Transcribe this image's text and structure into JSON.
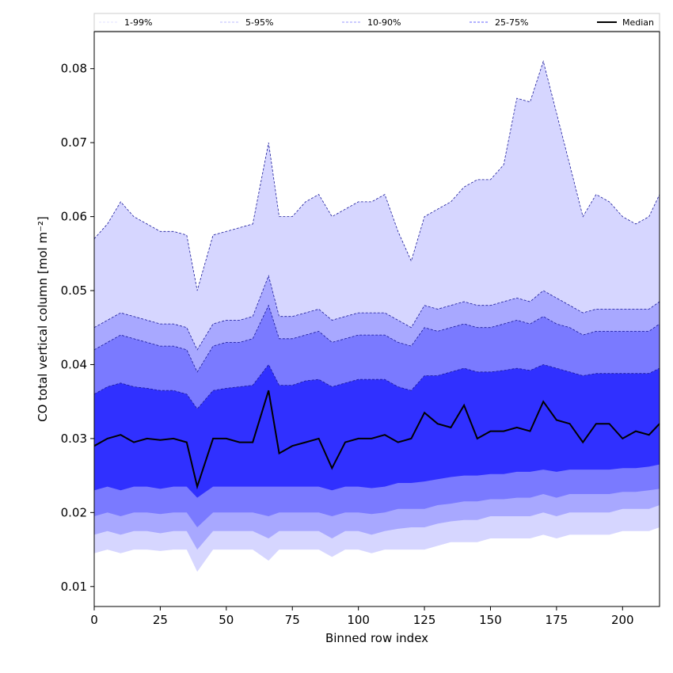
{
  "chart_data": {
    "type": "area",
    "xlabel": "Binned row index",
    "ylabel": "CO total vertical column [mol m⁻²]",
    "xlim": [
      0,
      214
    ],
    "ylim": [
      0.0073,
      0.085
    ],
    "xticks": [
      "0",
      "25",
      "50",
      "75",
      "100",
      "125",
      "150",
      "175",
      "200"
    ],
    "yticks": [
      "0.01",
      "0.02",
      "0.03",
      "0.04",
      "0.05",
      "0.06",
      "0.07",
      "0.08"
    ],
    "grid": false,
    "legend_position": "top",
    "x": [
      0,
      5,
      10,
      15,
      20,
      25,
      30,
      35,
      39,
      45,
      50,
      55,
      60,
      66,
      70,
      75,
      80,
      85,
      90,
      95,
      100,
      105,
      110,
      115,
      120,
      125,
      130,
      135,
      140,
      145,
      150,
      155,
      160,
      165,
      170,
      175,
      180,
      185,
      190,
      195,
      200,
      205,
      210,
      214
    ],
    "series": [
      {
        "name": "1-99%",
        "color": "#d6d6ff",
        "lower": [
          0.0145,
          0.015,
          0.0145,
          0.015,
          0.015,
          0.0148,
          0.015,
          0.015,
          0.012,
          0.015,
          0.015,
          0.015,
          0.015,
          0.0135,
          0.015,
          0.015,
          0.015,
          0.015,
          0.014,
          0.015,
          0.015,
          0.0145,
          0.015,
          0.015,
          0.015,
          0.015,
          0.0155,
          0.016,
          0.016,
          0.016,
          0.0165,
          0.0165,
          0.0165,
          0.0165,
          0.017,
          0.0165,
          0.017,
          0.017,
          0.017,
          0.017,
          0.0175,
          0.0175,
          0.0175,
          0.018
        ],
        "upper": [
          0.057,
          0.059,
          0.062,
          0.06,
          0.059,
          0.058,
          0.058,
          0.0575,
          0.05,
          0.0575,
          0.058,
          0.0585,
          0.059,
          0.07,
          0.06,
          0.06,
          0.062,
          0.063,
          0.06,
          0.061,
          0.062,
          0.062,
          0.063,
          0.058,
          0.054,
          0.06,
          0.061,
          0.062,
          0.064,
          0.065,
          0.065,
          0.067,
          0.076,
          0.0755,
          0.081,
          0.074,
          0.067,
          0.06,
          0.063,
          0.062,
          0.06,
          0.059,
          0.06,
          0.063
        ]
      },
      {
        "name": "5-95%",
        "color": "#a8a8ff",
        "lower": [
          0.017,
          0.0175,
          0.017,
          0.0175,
          0.0175,
          0.0172,
          0.0175,
          0.0175,
          0.015,
          0.0175,
          0.0175,
          0.0175,
          0.0175,
          0.0165,
          0.0175,
          0.0175,
          0.0175,
          0.0175,
          0.0165,
          0.0175,
          0.0175,
          0.017,
          0.0175,
          0.0178,
          0.018,
          0.018,
          0.0185,
          0.0188,
          0.019,
          0.019,
          0.0195,
          0.0195,
          0.0195,
          0.0195,
          0.02,
          0.0195,
          0.02,
          0.02,
          0.02,
          0.02,
          0.0205,
          0.0205,
          0.0205,
          0.021
        ],
        "upper": [
          0.045,
          0.046,
          0.047,
          0.0465,
          0.046,
          0.0455,
          0.0455,
          0.045,
          0.042,
          0.0455,
          0.046,
          0.046,
          0.0465,
          0.052,
          0.0465,
          0.0465,
          0.047,
          0.0475,
          0.046,
          0.0465,
          0.047,
          0.047,
          0.047,
          0.046,
          0.045,
          0.048,
          0.0475,
          0.048,
          0.0485,
          0.048,
          0.048,
          0.0485,
          0.049,
          0.0485,
          0.05,
          0.049,
          0.048,
          0.047,
          0.0475,
          0.0475,
          0.0475,
          0.0475,
          0.0475,
          0.0485
        ]
      },
      {
        "name": "10-90%",
        "color": "#7a7aff",
        "lower": [
          0.0195,
          0.02,
          0.0195,
          0.02,
          0.02,
          0.0198,
          0.02,
          0.02,
          0.018,
          0.02,
          0.02,
          0.02,
          0.02,
          0.0195,
          0.02,
          0.02,
          0.02,
          0.02,
          0.0195,
          0.02,
          0.02,
          0.0198,
          0.02,
          0.0205,
          0.0205,
          0.0205,
          0.021,
          0.0212,
          0.0215,
          0.0215,
          0.0218,
          0.0218,
          0.022,
          0.022,
          0.0225,
          0.022,
          0.0225,
          0.0225,
          0.0225,
          0.0225,
          0.0228,
          0.0228,
          0.023,
          0.0232
        ],
        "upper": [
          0.042,
          0.043,
          0.044,
          0.0435,
          0.043,
          0.0425,
          0.0425,
          0.042,
          0.039,
          0.0425,
          0.043,
          0.043,
          0.0435,
          0.048,
          0.0435,
          0.0435,
          0.044,
          0.0445,
          0.043,
          0.0435,
          0.044,
          0.044,
          0.044,
          0.043,
          0.0425,
          0.045,
          0.0445,
          0.045,
          0.0455,
          0.045,
          0.045,
          0.0455,
          0.046,
          0.0455,
          0.0465,
          0.0455,
          0.045,
          0.044,
          0.0445,
          0.0445,
          0.0445,
          0.0445,
          0.0445,
          0.0455
        ]
      },
      {
        "name": "25-75%",
        "color": "#3030ff",
        "lower": [
          0.023,
          0.0235,
          0.023,
          0.0235,
          0.0235,
          0.0232,
          0.0235,
          0.0235,
          0.022,
          0.0235,
          0.0235,
          0.0235,
          0.0235,
          0.0235,
          0.0235,
          0.0235,
          0.0235,
          0.0235,
          0.023,
          0.0235,
          0.0235,
          0.0233,
          0.0235,
          0.024,
          0.024,
          0.0242,
          0.0245,
          0.0248,
          0.025,
          0.025,
          0.0252,
          0.0252,
          0.0255,
          0.0255,
          0.0258,
          0.0255,
          0.0258,
          0.0258,
          0.0258,
          0.0258,
          0.026,
          0.026,
          0.0262,
          0.0265
        ],
        "upper": [
          0.036,
          0.037,
          0.0375,
          0.037,
          0.0368,
          0.0365,
          0.0365,
          0.036,
          0.034,
          0.0365,
          0.0368,
          0.037,
          0.0372,
          0.04,
          0.0372,
          0.0372,
          0.0378,
          0.038,
          0.037,
          0.0375,
          0.038,
          0.038,
          0.038,
          0.037,
          0.0365,
          0.0385,
          0.0385,
          0.039,
          0.0395,
          0.039,
          0.039,
          0.0392,
          0.0395,
          0.0392,
          0.04,
          0.0395,
          0.039,
          0.0385,
          0.0388,
          0.0388,
          0.0388,
          0.0388,
          0.0388,
          0.0395
        ]
      }
    ],
    "median": {
      "name": "Median",
      "color": "#000000",
      "values": [
        0.029,
        0.03,
        0.0305,
        0.0295,
        0.03,
        0.0298,
        0.03,
        0.0295,
        0.0235,
        0.03,
        0.03,
        0.0295,
        0.0295,
        0.0365,
        0.028,
        0.029,
        0.0295,
        0.03,
        0.026,
        0.0295,
        0.03,
        0.03,
        0.0305,
        0.0295,
        0.03,
        0.0335,
        0.032,
        0.0315,
        0.0345,
        0.03,
        0.031,
        0.031,
        0.0315,
        0.031,
        0.035,
        0.0325,
        0.032,
        0.0295,
        0.032,
        0.032,
        0.03,
        0.031,
        0.0305,
        0.032
      ]
    }
  }
}
